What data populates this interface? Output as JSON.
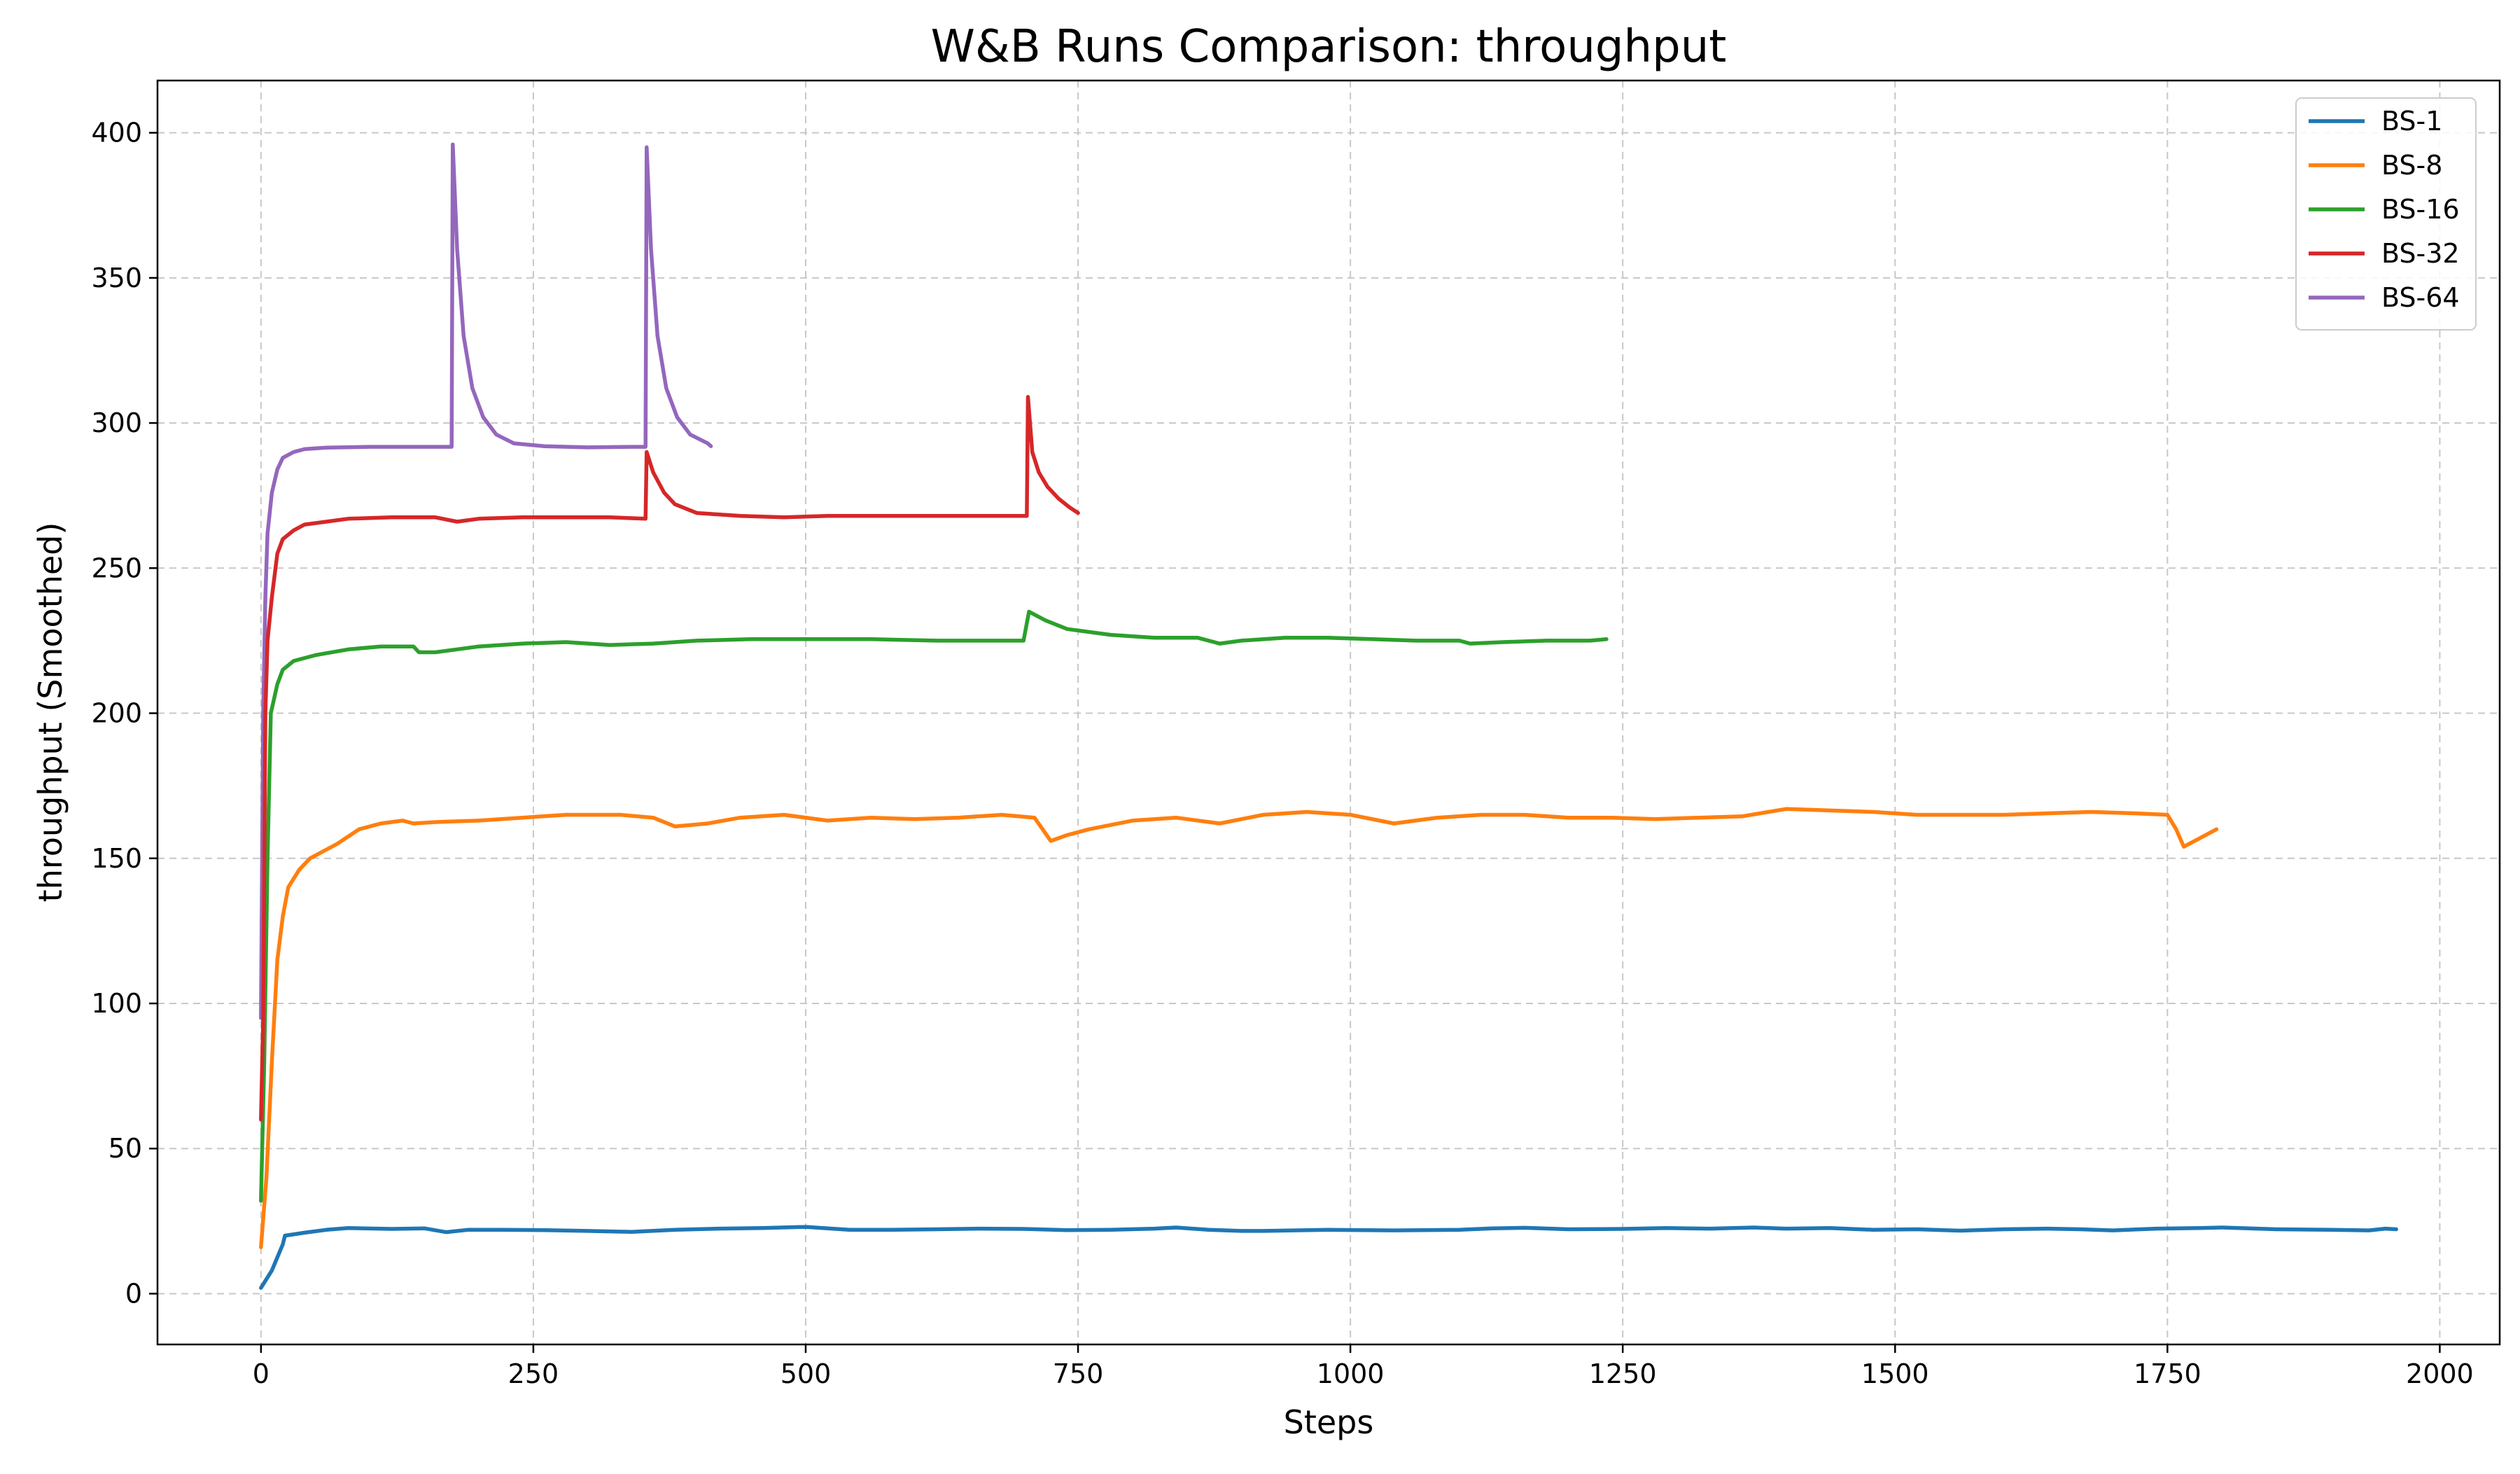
{
  "chart_data": {
    "type": "line",
    "title": "W&B Runs Comparison: throughput",
    "xlabel": "Steps",
    "ylabel": "throughput (Smoothed)",
    "xlim": [
      -95,
      2055
    ],
    "ylim": [
      -17.5,
      418
    ],
    "xticks": [
      0,
      250,
      500,
      750,
      1000,
      1250,
      1500,
      1750,
      2000
    ],
    "yticks": [
      0,
      50,
      100,
      150,
      200,
      250,
      300,
      350,
      400
    ],
    "grid": true,
    "grid_style": "dashed",
    "legend_position": "top-right",
    "series": [
      {
        "name": "BS-1",
        "color": "#1f77b4",
        "points": [
          [
            0,
            2
          ],
          [
            10,
            8
          ],
          [
            20,
            17
          ],
          [
            22,
            20
          ],
          [
            40,
            21
          ],
          [
            60,
            22
          ],
          [
            80,
            22.6
          ],
          [
            120,
            22.3
          ],
          [
            150,
            22.5
          ],
          [
            170,
            21.2
          ],
          [
            190,
            22
          ],
          [
            220,
            22
          ],
          [
            260,
            21.9
          ],
          [
            300,
            21.6
          ],
          [
            340,
            21.3
          ],
          [
            380,
            22
          ],
          [
            420,
            22.4
          ],
          [
            460,
            22.6
          ],
          [
            500,
            23
          ],
          [
            540,
            22
          ],
          [
            580,
            22
          ],
          [
            620,
            22.2
          ],
          [
            660,
            22.4
          ],
          [
            700,
            22.3
          ],
          [
            740,
            21.9
          ],
          [
            780,
            22
          ],
          [
            820,
            22.4
          ],
          [
            840,
            22.8
          ],
          [
            870,
            22
          ],
          [
            900,
            21.6
          ],
          [
            920,
            21.6
          ],
          [
            980,
            22
          ],
          [
            1040,
            21.8
          ],
          [
            1100,
            22
          ],
          [
            1130,
            22.5
          ],
          [
            1160,
            22.7
          ],
          [
            1200,
            22.2
          ],
          [
            1250,
            22.3
          ],
          [
            1290,
            22.6
          ],
          [
            1330,
            22.4
          ],
          [
            1370,
            22.8
          ],
          [
            1400,
            22.4
          ],
          [
            1440,
            22.6
          ],
          [
            1480,
            22
          ],
          [
            1520,
            22.2
          ],
          [
            1560,
            21.7
          ],
          [
            1600,
            22.2
          ],
          [
            1640,
            22.4
          ],
          [
            1670,
            22.2
          ],
          [
            1700,
            21.8
          ],
          [
            1740,
            22.4
          ],
          [
            1780,
            22.6
          ],
          [
            1800,
            22.8
          ],
          [
            1850,
            22.2
          ],
          [
            1900,
            22
          ],
          [
            1935,
            21.8
          ],
          [
            1950,
            22.4
          ],
          [
            1960,
            22.2
          ]
        ]
      },
      {
        "name": "BS-8",
        "color": "#ff7f0e",
        "points": [
          [
            0,
            16
          ],
          [
            5,
            40
          ],
          [
            10,
            80
          ],
          [
            15,
            115
          ],
          [
            20,
            130
          ],
          [
            25,
            140
          ],
          [
            35,
            146
          ],
          [
            45,
            150
          ],
          [
            55,
            152
          ],
          [
            70,
            155
          ],
          [
            90,
            160
          ],
          [
            110,
            162
          ],
          [
            130,
            163
          ],
          [
            140,
            162
          ],
          [
            160,
            162.5
          ],
          [
            200,
            163
          ],
          [
            240,
            164
          ],
          [
            280,
            165
          ],
          [
            330,
            165
          ],
          [
            360,
            164
          ],
          [
            380,
            161
          ],
          [
            410,
            162
          ],
          [
            440,
            164
          ],
          [
            480,
            165
          ],
          [
            520,
            163
          ],
          [
            560,
            164
          ],
          [
            600,
            163.5
          ],
          [
            640,
            164
          ],
          [
            680,
            165
          ],
          [
            710,
            164
          ],
          [
            725,
            156
          ],
          [
            740,
            158
          ],
          [
            760,
            160
          ],
          [
            800,
            163
          ],
          [
            840,
            164
          ],
          [
            880,
            162
          ],
          [
            920,
            165
          ],
          [
            960,
            166
          ],
          [
            1000,
            165
          ],
          [
            1040,
            162
          ],
          [
            1080,
            164
          ],
          [
            1120,
            165
          ],
          [
            1160,
            165
          ],
          [
            1200,
            164
          ],
          [
            1240,
            164
          ],
          [
            1280,
            163.5
          ],
          [
            1320,
            164
          ],
          [
            1360,
            164.5
          ],
          [
            1400,
            167
          ],
          [
            1440,
            166.5
          ],
          [
            1480,
            166
          ],
          [
            1520,
            165
          ],
          [
            1560,
            165
          ],
          [
            1600,
            165
          ],
          [
            1640,
            165.5
          ],
          [
            1680,
            166
          ],
          [
            1720,
            165.5
          ],
          [
            1750,
            165
          ],
          [
            1758,
            160
          ],
          [
            1765,
            154
          ],
          [
            1780,
            157
          ],
          [
            1795,
            160
          ]
        ]
      },
      {
        "name": "BS-16",
        "color": "#2ca02c",
        "points": [
          [
            0,
            32
          ],
          [
            3,
            80
          ],
          [
            6,
            150
          ],
          [
            9,
            200
          ],
          [
            15,
            210
          ],
          [
            20,
            215
          ],
          [
            30,
            218
          ],
          [
            50,
            220
          ],
          [
            80,
            222
          ],
          [
            110,
            223
          ],
          [
            140,
            223
          ],
          [
            145,
            221
          ],
          [
            160,
            221
          ],
          [
            200,
            223
          ],
          [
            240,
            224
          ],
          [
            280,
            224.5
          ],
          [
            320,
            223.5
          ],
          [
            360,
            224
          ],
          [
            400,
            225
          ],
          [
            450,
            225.5
          ],
          [
            500,
            225.5
          ],
          [
            560,
            225.5
          ],
          [
            620,
            225
          ],
          [
            660,
            225
          ],
          [
            700,
            225
          ],
          [
            705,
            235
          ],
          [
            720,
            232
          ],
          [
            740,
            229
          ],
          [
            780,
            227
          ],
          [
            820,
            226
          ],
          [
            860,
            226
          ],
          [
            880,
            224
          ],
          [
            900,
            225
          ],
          [
            940,
            226
          ],
          [
            980,
            226
          ],
          [
            1020,
            225.5
          ],
          [
            1060,
            225
          ],
          [
            1100,
            225
          ],
          [
            1110,
            224
          ],
          [
            1140,
            224.5
          ],
          [
            1180,
            225
          ],
          [
            1220,
            225
          ],
          [
            1235,
            225.5
          ]
        ]
      },
      {
        "name": "BS-64",
        "color": "#9467bd",
        "points": [
          [
            0,
            95
          ],
          [
            2,
            200
          ],
          [
            4,
            240
          ],
          [
            6,
            262
          ],
          [
            10,
            276
          ],
          [
            15,
            284
          ],
          [
            20,
            288
          ],
          [
            30,
            290
          ],
          [
            40,
            291
          ],
          [
            60,
            291.5
          ],
          [
            100,
            291.8
          ],
          [
            140,
            291.8
          ],
          [
            175,
            291.8
          ],
          [
            176,
            396
          ],
          [
            180,
            360
          ],
          [
            186,
            330
          ],
          [
            194,
            312
          ],
          [
            204,
            302
          ],
          [
            216,
            296
          ],
          [
            232,
            293
          ],
          [
            260,
            292
          ],
          [
            300,
            291.6
          ],
          [
            340,
            291.8
          ],
          [
            353,
            291.8
          ],
          [
            354,
            395
          ],
          [
            358,
            360
          ],
          [
            364,
            330
          ],
          [
            372,
            312
          ],
          [
            382,
            302
          ],
          [
            394,
            296
          ],
          [
            410,
            293
          ],
          [
            413,
            292
          ]
        ]
      },
      {
        "name": "BS-32",
        "color": "#d62728",
        "points": [
          [
            0,
            60
          ],
          [
            2,
            95
          ],
          [
            4,
            200
          ],
          [
            6,
            225
          ],
          [
            10,
            240
          ],
          [
            15,
            255
          ],
          [
            20,
            260
          ],
          [
            30,
            263
          ],
          [
            40,
            265
          ],
          [
            60,
            266
          ],
          [
            80,
            267
          ],
          [
            120,
            267.5
          ],
          [
            160,
            267.5
          ],
          [
            180,
            266
          ],
          [
            200,
            267
          ],
          [
            240,
            267.5
          ],
          [
            280,
            267.5
          ],
          [
            320,
            267.5
          ],
          [
            353,
            267
          ],
          [
            354,
            290
          ],
          [
            360,
            283
          ],
          [
            370,
            276
          ],
          [
            380,
            272
          ],
          [
            400,
            269
          ],
          [
            440,
            268
          ],
          [
            480,
            267.5
          ],
          [
            520,
            268
          ],
          [
            560,
            268
          ],
          [
            600,
            268
          ],
          [
            640,
            268
          ],
          [
            680,
            268
          ],
          [
            703,
            268
          ],
          [
            704,
            309
          ],
          [
            708,
            290
          ],
          [
            714,
            283
          ],
          [
            722,
            278
          ],
          [
            732,
            274
          ],
          [
            742,
            271
          ],
          [
            750,
            269
          ]
        ]
      }
    ]
  }
}
